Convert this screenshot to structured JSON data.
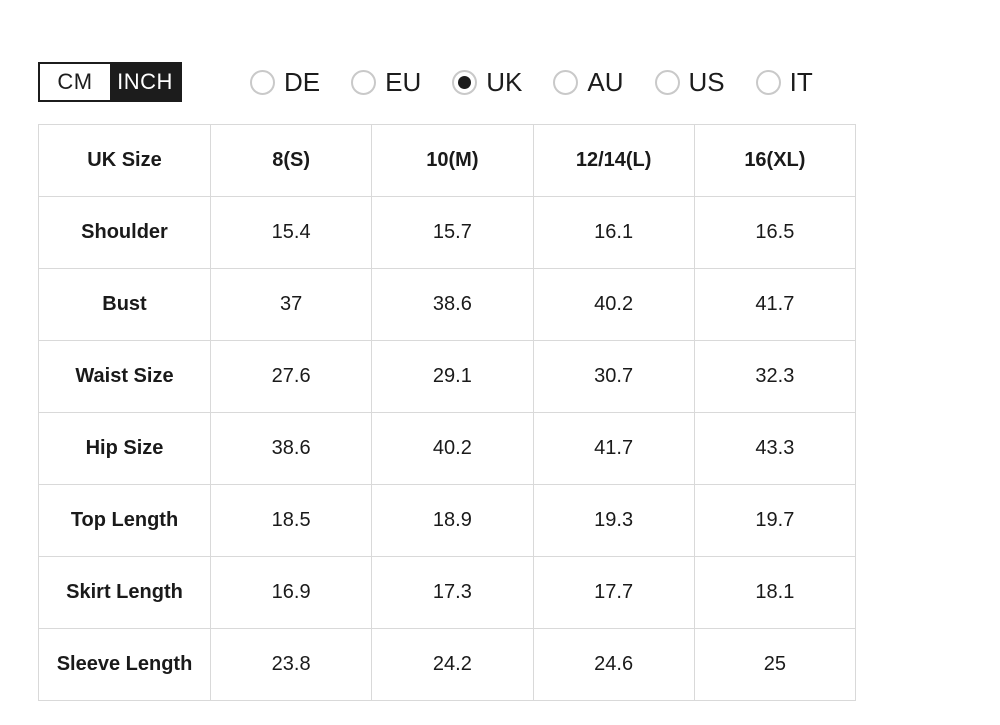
{
  "unit_toggle": {
    "cm_label": "CM",
    "inch_label": "INCH",
    "selected": "INCH"
  },
  "region_options": [
    {
      "label": "DE",
      "selected": false
    },
    {
      "label": "EU",
      "selected": false
    },
    {
      "label": "UK",
      "selected": true
    },
    {
      "label": "AU",
      "selected": false
    },
    {
      "label": "US",
      "selected": false
    },
    {
      "label": "IT",
      "selected": false
    }
  ],
  "size_table": {
    "header": [
      "UK Size",
      "8(S)",
      "10(M)",
      "12/14(L)",
      "16(XL)"
    ],
    "rows": [
      {
        "label": "Shoulder",
        "values": [
          "15.4",
          "15.7",
          "16.1",
          "16.5"
        ]
      },
      {
        "label": "Bust",
        "values": [
          "37",
          "38.6",
          "40.2",
          "41.7"
        ]
      },
      {
        "label": "Waist Size",
        "values": [
          "27.6",
          "29.1",
          "30.7",
          "32.3"
        ]
      },
      {
        "label": "Hip Size",
        "values": [
          "38.6",
          "40.2",
          "41.7",
          "43.3"
        ]
      },
      {
        "label": "Top Length",
        "values": [
          "18.5",
          "18.9",
          "19.3",
          "19.7"
        ]
      },
      {
        "label": "Skirt Length",
        "values": [
          "16.9",
          "17.3",
          "17.7",
          "18.1"
        ]
      },
      {
        "label": "Sleeve Length",
        "values": [
          "23.8",
          "24.2",
          "24.6",
          "25"
        ]
      }
    ]
  },
  "colors": {
    "toggle_active_bg": "#1c1c1c",
    "toggle_active_text": "#ffffff",
    "radio_border": "#c9c9c9",
    "radio_selected_dot": "#1c1c1c",
    "table_border": "#d9d9d9",
    "text": "#1a1a1a"
  }
}
